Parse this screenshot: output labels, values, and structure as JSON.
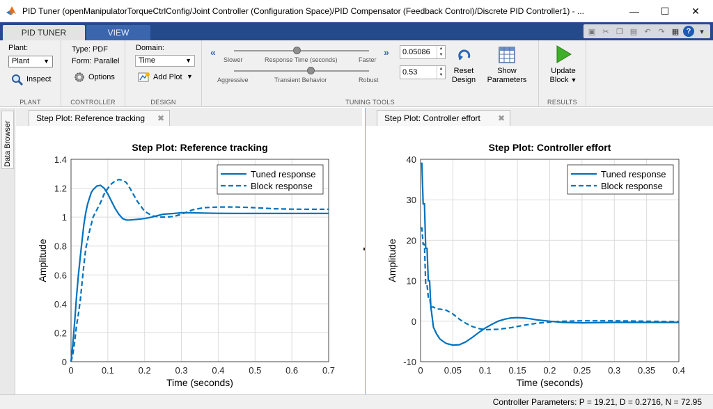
{
  "window": {
    "title": "PID Tuner (openManipulatorTorqueCtrlConfig/Joint Controller (Configuration Space)/PID Compensator (Feedback Control)/Discrete PID Controller1) - ...",
    "minimize_icon": "minimize-icon",
    "maximize_icon": "maximize-icon",
    "close_icon": "close-icon"
  },
  "ribbon_tabs": [
    {
      "label": "PID TUNER",
      "active": true
    },
    {
      "label": "VIEW",
      "active": false
    }
  ],
  "plant": {
    "label": "Plant:",
    "selected": "Plant",
    "inspect_label": "Inspect",
    "section": "PLANT"
  },
  "controller": {
    "type_text": "Type: PDF",
    "form_text": "Form: Parallel",
    "options_label": "Options",
    "section": "CONTROLLER"
  },
  "design": {
    "domain_label": "Domain:",
    "domain_selected": "Time",
    "add_plot_label": "Add Plot",
    "section": "DESIGN"
  },
  "tuning": {
    "slower": "Slower",
    "response_time_label": "Response Time (seconds)",
    "faster": "Faster",
    "response_time_value": "0.05086",
    "aggressive": "Aggressive",
    "transient_label": "Transient Behavior",
    "robust": "Robust",
    "transient_value": "0.53",
    "response_time_slider": 0.47,
    "transient_slider": 0.57,
    "reset_label_1": "Reset",
    "reset_label_2": "Design",
    "show_label_1": "Show",
    "show_label_2": "Parameters",
    "section": "TUNING TOOLS"
  },
  "results": {
    "update_label_1": "Update",
    "update_label_2": "Block",
    "section": "RESULTS"
  },
  "sidebar": {
    "data_browser": "Data Browser"
  },
  "doc_tabs": [
    {
      "label": "Step Plot: Reference tracking"
    },
    {
      "label": "Step Plot: Controller effort"
    }
  ],
  "status": {
    "controller_parameters": "Controller Parameters: P = 19.21, D = 0.2716, N = 72.95"
  },
  "colors": {
    "line": "#0072bd",
    "ribbon_dark": "#244a8c",
    "toolstrip": "#f0f0f0"
  },
  "chart_data": [
    {
      "type": "line",
      "title": "Step Plot: Reference tracking",
      "xlabel": "Time (seconds)",
      "ylabel": "Amplitude",
      "xlim": [
        0,
        0.7
      ],
      "ylim": [
        0,
        1.4
      ],
      "xticks": [
        "0",
        "0.1",
        "0.2",
        "0.3",
        "0.4",
        "0.5",
        "0.6",
        "0.7"
      ],
      "yticks": [
        "0",
        "0.2",
        "0.4",
        "0.6",
        "0.8",
        "1",
        "1.2",
        "1.4"
      ],
      "grid": true,
      "legend_position": "top-right",
      "series": [
        {
          "name": "Tuned response",
          "style": "solid",
          "x": [
            0,
            0.005,
            0.01,
            0.015,
            0.02,
            0.025,
            0.03,
            0.035,
            0.04,
            0.045,
            0.05,
            0.055,
            0.06,
            0.07,
            0.08,
            0.09,
            0.1,
            0.11,
            0.12,
            0.13,
            0.14,
            0.15,
            0.16,
            0.18,
            0.2,
            0.22,
            0.25,
            0.28,
            0.3,
            0.33,
            0.36,
            0.4,
            0.45,
            0.5,
            0.55,
            0.6,
            0.65,
            0.7
          ],
          "y": [
            0,
            0.12,
            0.28,
            0.45,
            0.6,
            0.72,
            0.84,
            0.95,
            1.03,
            1.09,
            1.13,
            1.17,
            1.19,
            1.215,
            1.22,
            1.2,
            1.16,
            1.11,
            1.06,
            1.02,
            0.99,
            0.98,
            0.98,
            0.985,
            0.99,
            1.0,
            1.02,
            1.025,
            1.03,
            1.03,
            1.028,
            1.026,
            1.025,
            1.025,
            1.025,
            1.025,
            1.025,
            1.025
          ]
        },
        {
          "name": "Block response",
          "style": "dashed",
          "x": [
            0,
            0.005,
            0.01,
            0.015,
            0.02,
            0.025,
            0.03,
            0.035,
            0.04,
            0.05,
            0.06,
            0.07,
            0.08,
            0.09,
            0.1,
            0.11,
            0.12,
            0.13,
            0.14,
            0.15,
            0.16,
            0.18,
            0.2,
            0.22,
            0.24,
            0.26,
            0.28,
            0.3,
            0.33,
            0.36,
            0.4,
            0.45,
            0.5,
            0.55,
            0.6,
            0.65,
            0.7
          ],
          "y": [
            0,
            0.05,
            0.14,
            0.25,
            0.33,
            0.42,
            0.55,
            0.67,
            0.78,
            0.9,
            1.0,
            1.05,
            1.1,
            1.16,
            1.2,
            1.23,
            1.25,
            1.26,
            1.255,
            1.24,
            1.2,
            1.11,
            1.04,
            1.01,
            1.0,
            1.0,
            1.005,
            1.02,
            1.05,
            1.065,
            1.07,
            1.07,
            1.065,
            1.058,
            1.055,
            1.054,
            1.054
          ]
        }
      ]
    },
    {
      "type": "line",
      "title": "Step Plot: Controller effort",
      "xlabel": "Time (seconds)",
      "ylabel": "Amplitude",
      "xlim": [
        0,
        0.4
      ],
      "ylim": [
        -10,
        40
      ],
      "xticks": [
        "0",
        "0.05",
        "0.1",
        "0.15",
        "0.2",
        "0.25",
        "0.3",
        "0.35",
        "0.4"
      ],
      "yticks": [
        "-10",
        "0",
        "10",
        "20",
        "30",
        "40"
      ],
      "grid": true,
      "legend_position": "top-right",
      "series": [
        {
          "name": "Tuned response",
          "style": "solid",
          "x": [
            0,
            0.002,
            0.004,
            0.006,
            0.008,
            0.01,
            0.012,
            0.014,
            0.016,
            0.018,
            0.02,
            0.025,
            0.03,
            0.035,
            0.04,
            0.05,
            0.06,
            0.07,
            0.08,
            0.09,
            0.1,
            0.11,
            0.12,
            0.13,
            0.14,
            0.15,
            0.16,
            0.17,
            0.18,
            0.2,
            0.22,
            0.25,
            0.3,
            0.35,
            0.4
          ],
          "y": [
            39,
            39,
            29,
            29,
            18,
            18,
            10,
            10,
            3.5,
            1,
            -1.5,
            -3.2,
            -4.4,
            -5,
            -5.5,
            -5.9,
            -5.8,
            -5.1,
            -4,
            -2.8,
            -1.7,
            -0.8,
            0,
            0.5,
            0.8,
            0.9,
            0.8,
            0.6,
            0.35,
            0,
            -0.3,
            -0.4,
            -0.3,
            -0.3,
            -0.3
          ]
        },
        {
          "name": "Block response",
          "style": "dashed",
          "x": [
            0,
            0.002,
            0.004,
            0.006,
            0.008,
            0.01,
            0.012,
            0.014,
            0.016,
            0.018,
            0.02,
            0.025,
            0.03,
            0.04,
            0.05,
            0.06,
            0.07,
            0.08,
            0.09,
            0.1,
            0.12,
            0.14,
            0.16,
            0.18,
            0.2,
            0.22,
            0.25,
            0.3,
            0.35,
            0.4
          ],
          "y": [
            23,
            23,
            19,
            19,
            9,
            9,
            6,
            6,
            3.5,
            3.5,
            3.5,
            3.0,
            3.0,
            2.7,
            1.8,
            0.5,
            -0.5,
            -1.3,
            -1.8,
            -2.1,
            -2.0,
            -1.6,
            -1.0,
            -0.5,
            -0.2,
            0,
            0.1,
            0.1,
            0,
            -0.1
          ]
        }
      ]
    }
  ]
}
